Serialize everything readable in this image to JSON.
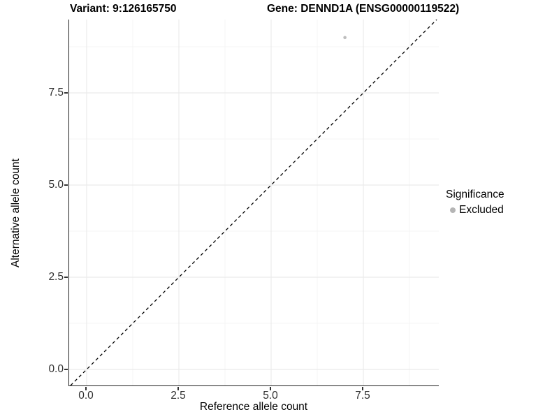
{
  "title": {
    "left": "Variant: 9:126165750",
    "right": "Gene: DENND1A (ENSG00000119522)"
  },
  "chart_data": {
    "type": "scatter",
    "title": "Variant: 9:126165750   Gene: DENND1A (ENSG00000119522)",
    "xlabel": "Reference allele count",
    "ylabel": "Alternative allele count",
    "xlim": [
      -0.4735,
      9.545
    ],
    "ylim": [
      -0.4356,
      9.4886
    ],
    "x_ticks": [
      0.0,
      2.5,
      5.0,
      7.5
    ],
    "x_tick_labels": [
      "0.0",
      "2.5",
      "5.0",
      "7.5"
    ],
    "y_ticks": [
      0.0,
      2.5,
      5.0,
      7.5
    ],
    "y_tick_labels": [
      "0.0",
      "2.5",
      "5.0",
      "7.5"
    ],
    "x_minor_ticks": [
      1.25,
      3.75,
      6.25,
      8.75
    ],
    "y_minor_ticks": [
      1.25,
      3.75,
      6.25,
      8.75
    ],
    "grid": true,
    "legend_position": "right",
    "series": [
      {
        "name": "Excluded",
        "color": "#bdbdbd",
        "points": [
          {
            "x": 7,
            "y": 9
          }
        ]
      }
    ],
    "reference_line": {
      "kind": "identity",
      "style": "dashed",
      "color": "#000000"
    },
    "legend": {
      "title": "Significance",
      "items": [
        {
          "label": "Excluded",
          "color": "#b5b5b5"
        }
      ]
    }
  },
  "colors": {
    "grid_major": "#ebebeb",
    "grid_minor": "#f4f4f4",
    "axis_line": "#1f1f1f",
    "tick_text": "#303030",
    "point": "#bdbdbd"
  }
}
